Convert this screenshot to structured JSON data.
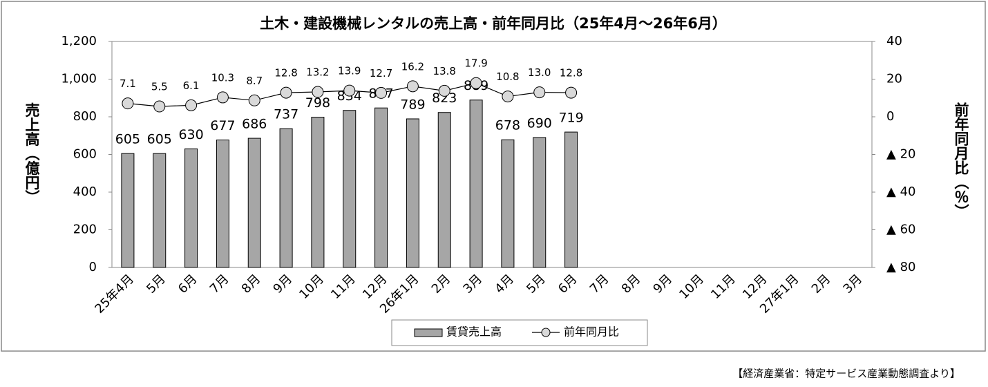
{
  "chart_data": {
    "type": "bar_line",
    "title": "土木・建設機械レンタルの売上高・前年同月比（25年4月～26年6月）",
    "y_label": "売上高（億円）",
    "y2_label": "前年同月比（％）",
    "source": "【経済産業省：特定サービス産業動態調査より】",
    "categories": [
      "25年4月",
      "5月",
      "6月",
      "7月",
      "8月",
      "9月",
      "10月",
      "11月",
      "12月",
      "26年1月",
      "2月",
      "3月",
      "4月",
      "5月",
      "6月",
      "7月",
      "8月",
      "9月",
      "10月",
      "11月",
      "12月",
      "27年1月",
      "2月",
      "3月"
    ],
    "series": [
      {
        "name": "賃貸売上高",
        "type": "bar",
        "color": "#a6a6a6",
        "values": [
          605,
          605,
          630,
          677,
          686,
          737,
          798,
          834,
          847,
          789,
          823,
          889,
          678,
          690,
          719,
          null,
          null,
          null,
          null,
          null,
          null,
          null,
          null,
          null
        ]
      },
      {
        "name": "前年同月比",
        "type": "line",
        "axis": "y2",
        "color": "#d9d9d9",
        "values": [
          7.1,
          5.5,
          6.1,
          10.3,
          8.7,
          12.8,
          13.2,
          13.9,
          12.7,
          16.2,
          13.8,
          17.9,
          10.8,
          13,
          12.8,
          null,
          null,
          null,
          null,
          null,
          null,
          null,
          null,
          null
        ],
        "value_labels": [
          "7.1",
          "5.5",
          "6.1",
          "10.3",
          "8.7",
          "12.8",
          "13.2",
          "13.9",
          "12.7",
          "16.2",
          "13.8",
          "17.9",
          "10.8",
          "13.0",
          "12.8",
          null,
          null,
          null,
          null,
          null,
          null,
          null,
          null,
          null
        ]
      }
    ],
    "ylim": [
      0,
      1200
    ],
    "yticks": [
      0,
      200,
      400,
      600,
      800,
      {
        "value": 1000,
        "label": "1,000"
      },
      {
        "value": 1200,
        "label": "1,200"
      }
    ],
    "y2lim": [
      -80,
      40
    ],
    "y2ticks": [
      {
        "value": -80,
        "label": "▲ 80"
      },
      {
        "value": -60,
        "label": "▲ 60"
      },
      {
        "value": -40,
        "label": "▲ 40"
      },
      {
        "value": -20,
        "label": "▲ 20"
      },
      0,
      20,
      40
    ],
    "legend": "bottom"
  }
}
